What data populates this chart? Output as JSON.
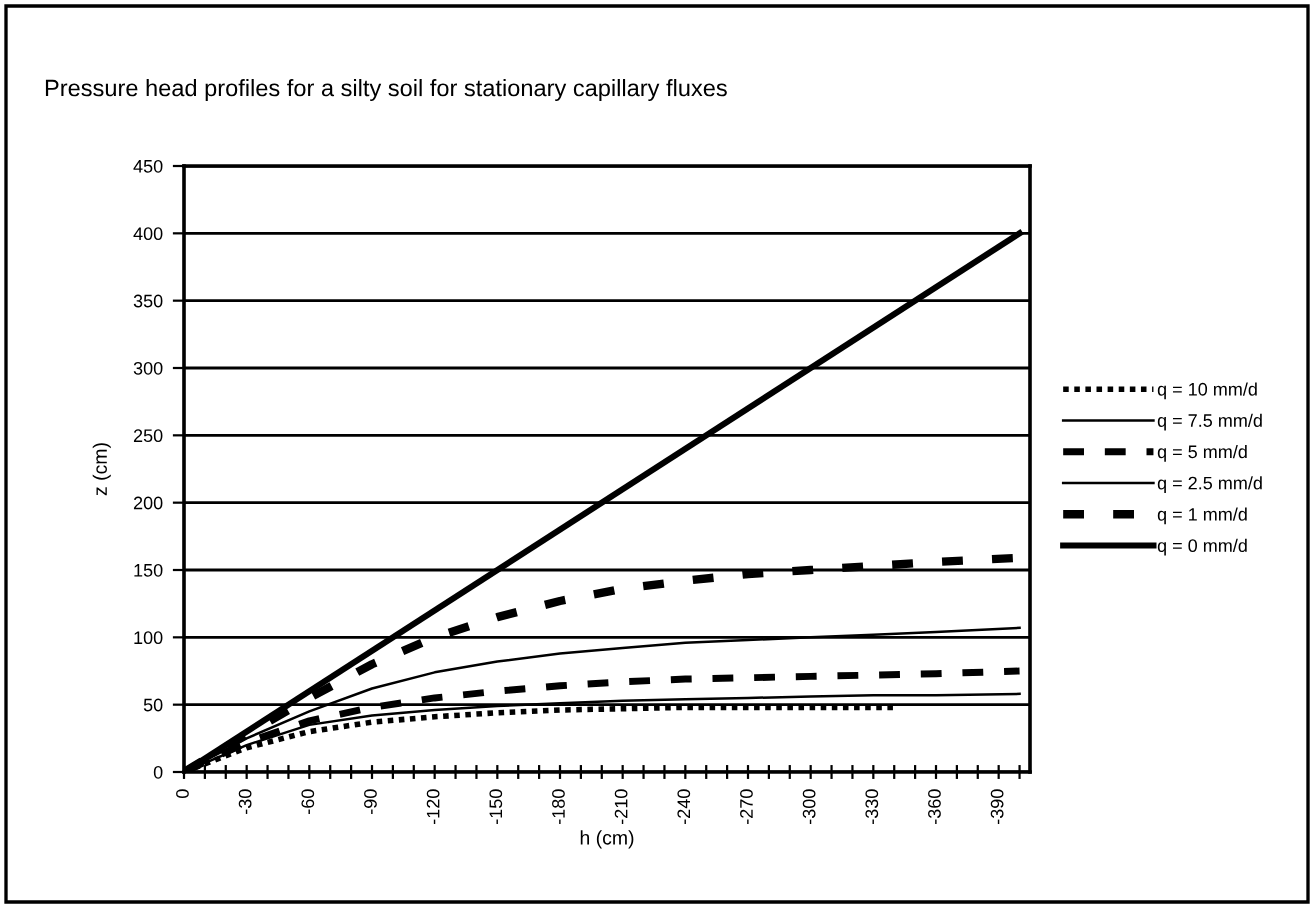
{
  "chart_data": {
    "type": "line",
    "title": "Pressure head profiles for a silty soil for stationary capillary fluxes",
    "xlabel": "h (cm)",
    "ylabel": "z (cm)",
    "xlim": [
      0,
      -405
    ],
    "ylim": [
      0,
      450
    ],
    "xticks": [
      0,
      {
        "value": -10,
        "label": null
      },
      {
        "value": -20,
        "label": null
      },
      -30,
      {
        "value": -40,
        "label": null
      },
      {
        "value": -50,
        "label": null
      },
      -60,
      {
        "value": -70,
        "label": null
      },
      {
        "value": -80,
        "label": null
      },
      -90,
      {
        "value": -100,
        "label": null
      },
      {
        "value": -110,
        "label": null
      },
      -120,
      {
        "value": -130,
        "label": null
      },
      {
        "value": -140,
        "label": null
      },
      -150,
      {
        "value": -160,
        "label": null
      },
      {
        "value": -170,
        "label": null
      },
      -180,
      {
        "value": -190,
        "label": null
      },
      {
        "value": -200,
        "label": null
      },
      -210,
      {
        "value": -220,
        "label": null
      },
      {
        "value": -230,
        "label": null
      },
      -240,
      {
        "value": -250,
        "label": null
      },
      {
        "value": -260,
        "label": null
      },
      -270,
      {
        "value": -280,
        "label": null
      },
      {
        "value": -290,
        "label": null
      },
      -300,
      {
        "value": -310,
        "label": null
      },
      {
        "value": -320,
        "label": null
      },
      -330,
      {
        "value": -340,
        "label": null
      },
      {
        "value": -350,
        "label": null
      },
      -360,
      {
        "value": -370,
        "label": null
      },
      {
        "value": -380,
        "label": null
      },
      -390,
      {
        "value": -400,
        "label": null
      }
    ],
    "yticks": [
      0,
      50,
      100,
      150,
      200,
      250,
      300,
      350,
      400,
      450
    ],
    "grid": "y",
    "legend": "right",
    "marker": "none",
    "series": [
      {
        "name": "q = 10 mm/d",
        "color": "#000000",
        "line_style": "dotted",
        "x": [
          0,
          -30,
          -60,
          -90,
          -120,
          -150,
          -180,
          -210,
          -240,
          -270,
          -300,
          -340
        ],
        "values": [
          0,
          18,
          30,
          37,
          41,
          44,
          46,
          47,
          48,
          48,
          48,
          48
        ]
      },
      {
        "name": "q = 7.5 mm/d",
        "color": "#000000",
        "line_style": "solid",
        "x": [
          0,
          -30,
          -60,
          -90,
          -120,
          -150,
          -180,
          -210,
          -240,
          -270,
          -300,
          -330,
          -360,
          -400
        ],
        "values": [
          0,
          20,
          35,
          42,
          46,
          49,
          51,
          53,
          54,
          55,
          56,
          57,
          57,
          58
        ]
      },
      {
        "name": "q = 5 mm/d",
        "color": "#000000",
        "line_style": "dashed",
        "x": [
          0,
          -30,
          -60,
          -90,
          -120,
          -150,
          -180,
          -210,
          -240,
          -270,
          -300,
          -330,
          -360,
          -400
        ],
        "values": [
          0,
          22,
          38,
          48,
          55,
          60,
          64,
          67,
          69,
          70,
          71,
          72,
          73,
          75
        ]
      },
      {
        "name": "q = 2.5 mm/d",
        "color": "#000000",
        "line_style": "solid",
        "x": [
          0,
          -30,
          -60,
          -90,
          -120,
          -150,
          -180,
          -210,
          -240,
          -270,
          -300,
          -330,
          -360,
          -400
        ],
        "values": [
          0,
          25,
          45,
          62,
          74,
          82,
          88,
          92,
          96,
          98,
          100,
          102,
          104,
          107
        ]
      },
      {
        "name": "q = 1 mm/d",
        "color": "#000000",
        "line_style": "dashed",
        "x": [
          0,
          -30,
          -60,
          -90,
          -120,
          -150,
          -180,
          -210,
          -240,
          -270,
          -300,
          -330,
          -360,
          -400
        ],
        "values": [
          0,
          28,
          55,
          80,
          100,
          115,
          127,
          136,
          142,
          147,
          150,
          153,
          156,
          159
        ]
      },
      {
        "name": "q = 0 mm/d",
        "color": "#000000",
        "line_style": "solid",
        "x": [
          0,
          -400
        ],
        "values": [
          0,
          400
        ]
      }
    ]
  }
}
